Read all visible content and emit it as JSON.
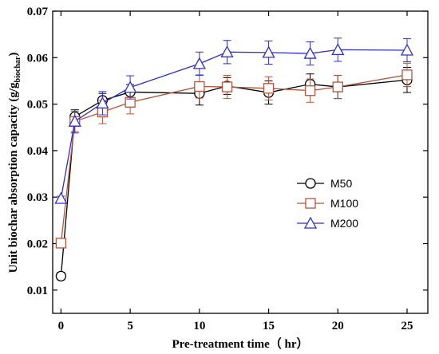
{
  "chart_data": {
    "type": "line",
    "title": "",
    "xlabel": "Pre-treatment time（ hr）",
    "ylabel": {
      "main": "Unit biochar absorption capacity (g/g",
      "sub": "biochar",
      "close": ")"
    },
    "xlim": [
      -0.6,
      26.5
    ],
    "ylim": [
      0.005,
      0.07
    ],
    "x_ticks": [
      0,
      5,
      10,
      15,
      20,
      25
    ],
    "x_tick_labels": [
      "0",
      "5",
      "10",
      "15",
      "20",
      "25"
    ],
    "y_ticks": [
      0.01,
      0.02,
      0.03,
      0.04,
      0.05,
      0.06,
      0.07
    ],
    "y_tick_labels": [
      "0.01",
      "0.02",
      "0.03",
      "0.04",
      "0.05",
      "0.06",
      "0.07"
    ],
    "grid": false,
    "legend_position": "center-right",
    "x": [
      0,
      1,
      3,
      5,
      10,
      12,
      15,
      18,
      20,
      25
    ],
    "series": [
      {
        "name": "M50",
        "marker": "circle",
        "color": "#000000",
        "values": [
          0.013,
          0.0473,
          0.0508,
          0.0526,
          0.0523,
          0.0539,
          0.0525,
          0.0543,
          0.0537,
          0.0552
        ],
        "errors": [
          0.0008,
          0.0015,
          0.0015,
          0.0016,
          0.0025,
          0.0018,
          0.0025,
          0.0022,
          0.0025,
          0.0027
        ]
      },
      {
        "name": "M100",
        "marker": "square",
        "color": "#b4553c",
        "values": [
          0.0201,
          0.0463,
          0.0483,
          0.0504,
          0.0538,
          0.0537,
          0.0534,
          0.0529,
          0.0537,
          0.0563
        ],
        "errors": [
          0.0008,
          0.0022,
          0.0025,
          0.0025,
          0.0025,
          0.0025,
          0.0025,
          0.0025,
          0.0025,
          0.0025
        ]
      },
      {
        "name": "M200",
        "marker": "triangle",
        "color": "#2f2fd0",
        "values": [
          0.0297,
          0.0463,
          0.0502,
          0.0536,
          0.0587,
          0.0612,
          0.0611,
          0.0609,
          0.0617,
          0.0616
        ],
        "errors": [
          0.0005,
          0.0025,
          0.0025,
          0.0025,
          0.0025,
          0.0025,
          0.0025,
          0.0025,
          0.0025,
          0.0025
        ]
      }
    ]
  }
}
